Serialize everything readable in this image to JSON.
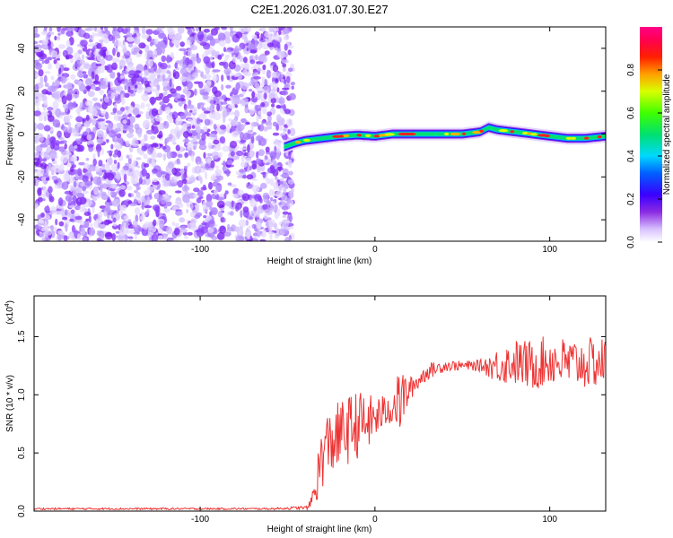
{
  "title": "C2E1.2026.031.07.30.E27",
  "colors": {
    "signal_line": "#ee3333",
    "noise_purple": "#7a2ff0",
    "axis": "#000000"
  },
  "chart_data": [
    {
      "type": "heatmap",
      "title": "C2E1.2026.031.07.30.E27",
      "xlabel": "Height of straight line (km)",
      "ylabel": "Frequency (Hz)",
      "xlim": [
        -195,
        132
      ],
      "ylim": [
        -50,
        50
      ],
      "x_ticks": [
        -100,
        0,
        100
      ],
      "x_tick_labels": [
        "-100",
        "0",
        "100"
      ],
      "y_ticks": [
        -40,
        -20,
        0,
        20,
        40
      ],
      "y_tick_labels": [
        "-40",
        "-20",
        "0",
        "20",
        "40"
      ],
      "noise_region_x": [
        -195,
        -50
      ],
      "ridge": {
        "x": [
          -52,
          -45,
          -40,
          -30,
          -20,
          -10,
          0,
          10,
          20,
          30,
          40,
          50,
          60,
          65,
          70,
          80,
          90,
          100,
          110,
          120,
          132
        ],
        "frequency": [
          -6,
          -4,
          -3,
          -2,
          -1,
          -0.5,
          -1,
          0,
          0,
          0,
          0,
          0,
          1,
          3,
          2,
          1,
          0,
          -1,
          -2,
          -2,
          -1
        ]
      },
      "colorbar": {
        "label": "Normalized spectral amplitude",
        "range": [
          0,
          1
        ],
        "ticks": [
          0.0,
          0.2,
          0.4,
          0.6,
          0.8
        ],
        "tick_labels": [
          "0.0",
          "0.2",
          "0.4",
          "0.6",
          "0.8"
        ]
      }
    },
    {
      "type": "line",
      "xlabel": "Height of straight line (km)",
      "ylabel": "SNR (10 * v/v)",
      "scale_note": "(x10",
      "scale_exponent": "4",
      "xlim": [
        -195,
        132
      ],
      "ylim": [
        0,
        18500
      ],
      "x_ticks": [
        -100,
        0,
        100
      ],
      "x_tick_labels": [
        "-100",
        "0",
        "100"
      ],
      "y_ticks": [
        0,
        5000,
        10000,
        15000
      ],
      "y_tick_labels": [
        "0.0",
        "0.5",
        "1.0",
        "1.5"
      ],
      "series": [
        {
          "name": "SNR",
          "x": [
            -195,
            -150,
            -100,
            -60,
            -38,
            -35,
            -32,
            -30,
            -25,
            -20,
            -15,
            -10,
            -5,
            0,
            5,
            10,
            15,
            20,
            30,
            40,
            50,
            60,
            70,
            80,
            90,
            100,
            110,
            120,
            132
          ],
          "values": [
            200,
            200,
            200,
            200,
            300,
            1500,
            3500,
            5000,
            6000,
            6500,
            7000,
            7500,
            7500,
            8000,
            8500,
            9000,
            9500,
            10500,
            12000,
            12500,
            12500,
            12500,
            12500,
            12800,
            12500,
            13000,
            12700,
            12700,
            12800
          ],
          "fluctuation": [
            80,
            80,
            80,
            80,
            150,
            1200,
            2500,
            3000,
            3000,
            3000,
            3000,
            3000,
            2500,
            2000,
            1500,
            1500,
            3000,
            1000,
            700,
            500,
            400,
            500,
            1500,
            2000,
            2200,
            2200,
            2200,
            2200,
            2200
          ]
        }
      ]
    }
  ]
}
